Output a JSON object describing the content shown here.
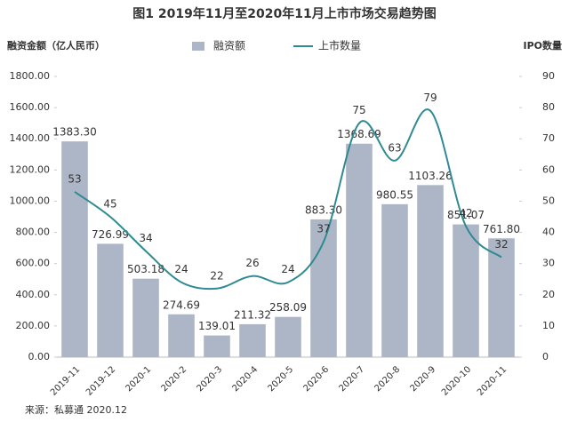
{
  "chart_data": {
    "type": "bar",
    "title": "图1  2019年11月至2020年11月上市市场交易趋势图",
    "y_label": "融资金额（亿人民币）",
    "y2_label": "IPO数量",
    "source": "来源：私募通 2020.12",
    "categories": [
      "2019-11",
      "2019-12",
      "2020-1",
      "2020-2",
      "2020-3",
      "2020-4",
      "2020-5",
      "2020-6",
      "2020-7",
      "2020-8",
      "2020-9",
      "2020-10",
      "2020-11"
    ],
    "series": [
      {
        "name": "融资额",
        "color": "#adb6c6",
        "values": [
          1383.3,
          726.99,
          503.18,
          274.69,
          139.01,
          211.32,
          258.09,
          883.3,
          1368.69,
          980.55,
          1103.26,
          851.07,
          761.8
        ],
        "value_labels": [
          "1383.30",
          "726.99",
          "503.18",
          "274.69",
          "139.01",
          "211.32",
          "258.09",
          "883.30",
          "1368.69",
          "980.55",
          "1103.26",
          "851.07",
          "761.80"
        ]
      },
      {
        "name": "上市数量",
        "type": "line",
        "axis": "y2",
        "color": "#2f8a92",
        "values": [
          53,
          45,
          34,
          24,
          22,
          26,
          24,
          37,
          75,
          63,
          79,
          42,
          32
        ]
      }
    ],
    "ylim": [
      0,
      1800
    ],
    "yticks": [
      {
        "value": 0,
        "label": "0.00"
      },
      {
        "value": 200,
        "label": "200.00"
      },
      {
        "value": 400,
        "label": "400.00"
      },
      {
        "value": 600,
        "label": "600.00"
      },
      {
        "value": 800,
        "label": "800.00"
      },
      {
        "value": 1000,
        "label": "1000.00"
      },
      {
        "value": 1200,
        "label": "1200.00"
      },
      {
        "value": 1400,
        "label": "1400.00"
      },
      {
        "value": 1600,
        "label": "1600.00"
      },
      {
        "value": 1800,
        "label": "1800.00"
      }
    ],
    "y2lim": [
      0,
      90
    ],
    "y2ticks": [
      0,
      10,
      20,
      30,
      40,
      50,
      60,
      70,
      80,
      90
    ]
  }
}
